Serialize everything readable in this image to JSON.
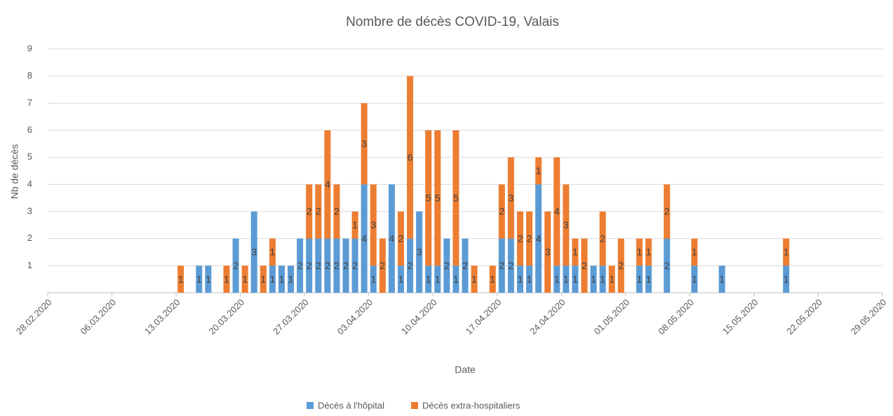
{
  "chart_data": {
    "type": "stacked-bar",
    "title": "Nombre de décès COVID-19, Valais",
    "x_label": "Date",
    "y_label": "Nb de décès",
    "x": [
      "13.03.2020",
      "15.03.2020",
      "16.03.2020",
      "18.03.2020",
      "19.03.2020",
      "20.03.2020",
      "21.03.2020",
      "22.03.2020",
      "23.03.2020",
      "24.03.2020",
      "25.03.2020",
      "26.03.2020",
      "27.03.2020",
      "28.03.2020",
      "29.03.2020",
      "30.03.2020",
      "31.03.2020",
      "01.04.2020",
      "02.04.2020",
      "03.04.2020",
      "04.04.2020",
      "05.04.2020",
      "06.04.2020",
      "07.04.2020",
      "08.04.2020",
      "09.04.2020",
      "10.04.2020",
      "11.04.2020",
      "12.04.2020",
      "13.04.2020",
      "14.04.2020",
      "16.04.2020",
      "17.04.2020",
      "18.04.2020",
      "19.04.2020",
      "20.04.2020",
      "21.04.2020",
      "22.04.2020",
      "23.04.2020",
      "24.04.2020",
      "25.04.2020",
      "26.04.2020",
      "27.04.2020",
      "28.04.2020",
      "29.04.2020",
      "30.04.2020",
      "02.05.2020",
      "03.05.2020",
      "05.05.2020",
      "08.05.2020",
      "11.05.2020",
      "18.05.2020"
    ],
    "series": [
      {
        "name": "Décès à l'hôpital",
        "color": "#5b9bd5",
        "values": [
          0,
          1,
          1,
          0,
          2,
          0,
          3,
          0,
          1,
          1,
          1,
          2,
          2,
          2,
          2,
          2,
          2,
          2,
          4,
          1,
          0,
          4,
          1,
          2,
          3,
          1,
          1,
          2,
          1,
          2,
          0,
          0,
          2,
          2,
          1,
          1,
          4,
          0,
          1,
          1,
          1,
          0,
          1,
          1,
          0,
          0,
          1,
          1,
          2,
          1,
          1,
          1
        ]
      },
      {
        "name": "Décès extra-hospitaliers",
        "color": "#ed7d31",
        "values": [
          1,
          0,
          0,
          1,
          0,
          1,
          0,
          1,
          1,
          0,
          0,
          0,
          2,
          2,
          4,
          2,
          0,
          1,
          3,
          3,
          2,
          0,
          2,
          6,
          0,
          5,
          5,
          0,
          5,
          0,
          1,
          1,
          2,
          3,
          2,
          2,
          1,
          3,
          4,
          3,
          1,
          2,
          0,
          2,
          1,
          2,
          1,
          1,
          2,
          1,
          0,
          1
        ]
      }
    ],
    "xlim": [
      "28.02.2020",
      "29.05.2020"
    ],
    "xticks": [
      "28.02.2020",
      "06.03.2020",
      "13.03.2020",
      "20.03.2020",
      "27.03.2020",
      "03.04.2020",
      "10.04.2020",
      "17.04.2020",
      "24.04.2020",
      "01.05.2020",
      "08.05.2020",
      "15.05.2020",
      "22.05.2020",
      "29.05.2020"
    ],
    "ylim": [
      0,
      9
    ],
    "yticks": [
      1,
      2,
      3,
      4,
      5,
      6,
      7,
      8,
      9
    ],
    "grid": true,
    "legend": "bottom"
  }
}
